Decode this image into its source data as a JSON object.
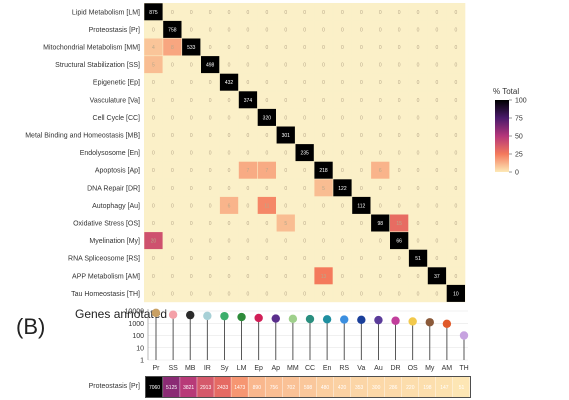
{
  "chart_data": [
    {
      "type": "heatmap",
      "rows": [
        "Lipid Metabolism [LM]",
        "Proteostasis [Pr]",
        "Mitochondrial Metabolism [MM]",
        "Structural Stabilization [SS]",
        "Epigenetic [Ep]",
        "Vasculature [Va]",
        "Cell Cycle [CC]",
        "Metal Binding and Homeostasis [MB]",
        "Endolysosome [En]",
        "Apoptosis [Ap]",
        "DNA Repair [DR]",
        "Autophagy [Au]",
        "Oxidative Stress [OS]",
        "Myelination [My]",
        "RNA Spliceosome [RS]",
        "APP Metabolism [AM]",
        "Tau Homeostasis [TH]"
      ],
      "diagonal_counts": [
        875,
        758,
        533,
        498,
        432,
        374,
        320,
        301,
        235,
        218,
        122,
        112,
        98,
        66,
        51,
        37,
        10
      ],
      "legend": {
        "title": "% Total",
        "ticks": [
          100,
          75,
          50,
          25,
          0
        ],
        "colors": [
          "#000000",
          "#4a1a6b",
          "#b5367a",
          "#f47a5c",
          "#fde9b6"
        ]
      },
      "offdiag_highlights": [
        {
          "row": 2,
          "col": 1,
          "pct": 15
        },
        {
          "row": 2,
          "col": 0,
          "pct": 8
        },
        {
          "row": 3,
          "col": 0,
          "pct": 10
        },
        {
          "row": 9,
          "col": 5,
          "pct": 14
        },
        {
          "row": 9,
          "col": 6,
          "pct": 14
        },
        {
          "row": 9,
          "col": 12,
          "pct": 12
        },
        {
          "row": 10,
          "col": 9,
          "pct": 10
        },
        {
          "row": 11,
          "col": 6,
          "pct": 22
        },
        {
          "row": 11,
          "col": 4,
          "pct": 12
        },
        {
          "row": 12,
          "col": 13,
          "pct": 30
        },
        {
          "row": 12,
          "col": 7,
          "pct": 10
        },
        {
          "row": 13,
          "col": 0,
          "pct": 40
        },
        {
          "row": 15,
          "col": 9,
          "pct": 25
        }
      ]
    },
    {
      "type": "scatter",
      "title": "(B)",
      "ylabel": "Genes annotated",
      "y_scale": "log",
      "y_ticks": [
        "10000",
        "1000",
        "100",
        "10",
        "1"
      ],
      "categories": [
        "Pr",
        "SS",
        "MB",
        "IR",
        "Sy",
        "LM",
        "Ep",
        "Ap",
        "MM",
        "CC",
        "En",
        "RS",
        "Va",
        "Au",
        "DR",
        "OS",
        "My",
        "AM",
        "TH"
      ],
      "values": [
        7060,
        5000,
        4600,
        4000,
        3800,
        3200,
        2700,
        2400,
        2300,
        2200,
        2100,
        2000,
        1900,
        1800,
        1600,
        1400,
        1200,
        900,
        100
      ],
      "colors": [
        "#c9a063",
        "#f4a0a8",
        "#2b2b2b",
        "#a7d0d6",
        "#3cae6b",
        "#2e8b3a",
        "#d11f57",
        "#5a2e8c",
        "#9fd08c",
        "#2a8f7f",
        "#1f8fa0",
        "#3b8fe0",
        "#1a3f9a",
        "#5b3c9a",
        "#c23f9c",
        "#f2c94c",
        "#8b5a3a",
        "#e05a2a",
        "#c7a3e0"
      ]
    },
    {
      "type": "heatmap",
      "rows": [
        "Proteostasis [Pr]"
      ],
      "values": [
        7060,
        5125,
        3821,
        2913,
        2433,
        1473,
        890,
        756,
        702,
        598,
        480,
        420,
        353,
        300,
        286,
        220,
        198,
        147,
        51
      ]
    }
  ]
}
